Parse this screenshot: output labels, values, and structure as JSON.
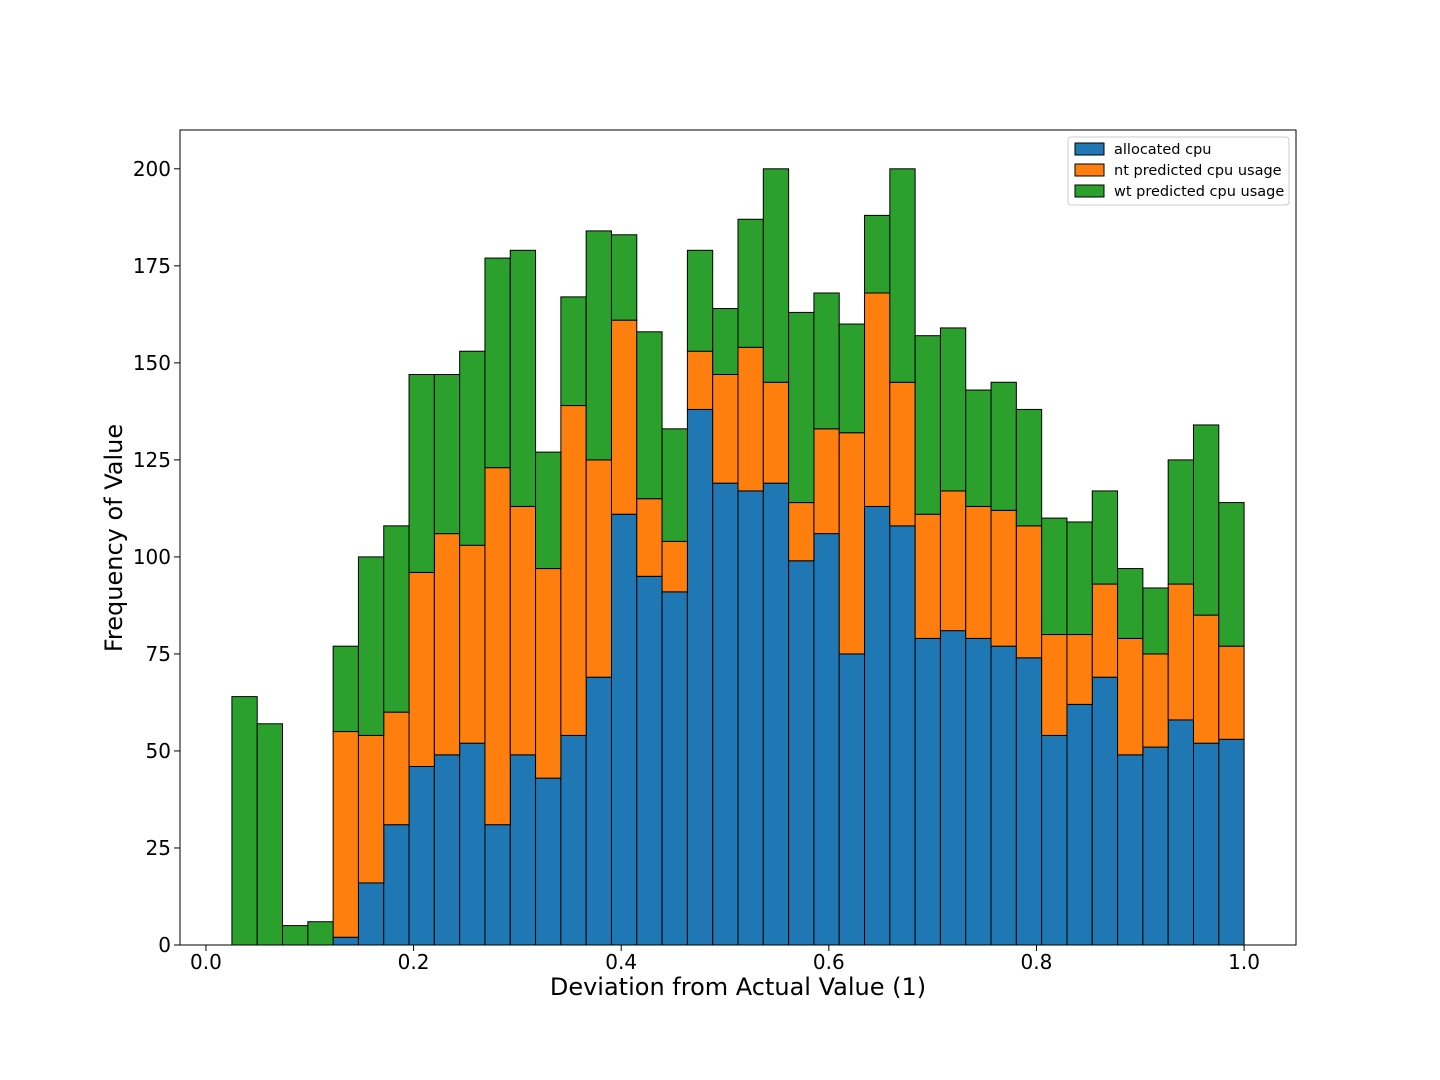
{
  "chart_data": {
    "type": "bar",
    "stacked": true,
    "title": "",
    "xlabel": "Deviation from Actual Value (1)",
    "ylabel": "Frequency of Value",
    "xlim": [
      -0.025,
      1.05
    ],
    "ylim": [
      0,
      210
    ],
    "xticks": [
      0.0,
      0.2,
      0.4,
      0.6,
      0.8,
      1.0
    ],
    "xtick_labels": [
      "0.0",
      "0.2",
      "0.4",
      "0.6",
      "0.8",
      "1.0"
    ],
    "yticks": [
      0,
      25,
      50,
      75,
      100,
      125,
      150,
      175,
      200
    ],
    "ytick_labels": [
      "0",
      "25",
      "50",
      "75",
      "100",
      "125",
      "150",
      "175",
      "200"
    ],
    "grid": false,
    "legend_position": "top-right",
    "bin_start": 0.025,
    "bin_width": 0.024375,
    "bins": [
      0.025,
      0.049,
      0.074,
      0.098,
      0.123,
      0.147,
      0.171,
      0.196,
      0.22,
      0.244,
      0.269,
      0.293,
      0.318,
      0.342,
      0.366,
      0.391,
      0.415,
      0.44,
      0.464,
      0.488,
      0.513,
      0.537,
      0.562,
      0.586,
      0.61,
      0.635,
      0.659,
      0.684,
      0.708,
      0.732,
      0.757,
      0.781,
      0.806,
      0.83,
      0.854,
      0.879,
      0.903,
      0.928,
      0.952,
      0.976
    ],
    "series": [
      {
        "name": "allocated cpu",
        "color": "#1f77b4",
        "values": [
          0,
          0,
          0,
          0,
          2,
          16,
          31,
          46,
          49,
          52,
          31,
          49,
          43,
          54,
          69,
          111,
          95,
          91,
          138,
          119,
          117,
          119,
          99,
          106,
          75,
          113,
          108,
          79,
          81,
          79,
          77,
          74,
          54,
          62,
          69,
          49,
          51,
          58,
          52,
          53
        ]
      },
      {
        "name": "nt predicted cpu usage",
        "color": "#ff7f0e",
        "values": [
          0,
          0,
          0,
          0,
          53,
          38,
          29,
          50,
          57,
          51,
          92,
          64,
          54,
          85,
          56,
          50,
          20,
          13,
          15,
          28,
          37,
          26,
          15,
          27,
          57,
          55,
          37,
          32,
          36,
          34,
          35,
          34,
          26,
          18,
          24,
          30,
          24,
          35,
          33,
          24
        ]
      },
      {
        "name": "wt predicted cpu usage",
        "color": "#2ca02c",
        "values": [
          64,
          57,
          5,
          6,
          22,
          46,
          48,
          51,
          41,
          50,
          54,
          66,
          30,
          28,
          59,
          22,
          43,
          29,
          26,
          17,
          33,
          55,
          49,
          35,
          28,
          20,
          55,
          46,
          42,
          30,
          33,
          30,
          30,
          29,
          24,
          18,
          17,
          32,
          49,
          37
        ]
      }
    ]
  }
}
